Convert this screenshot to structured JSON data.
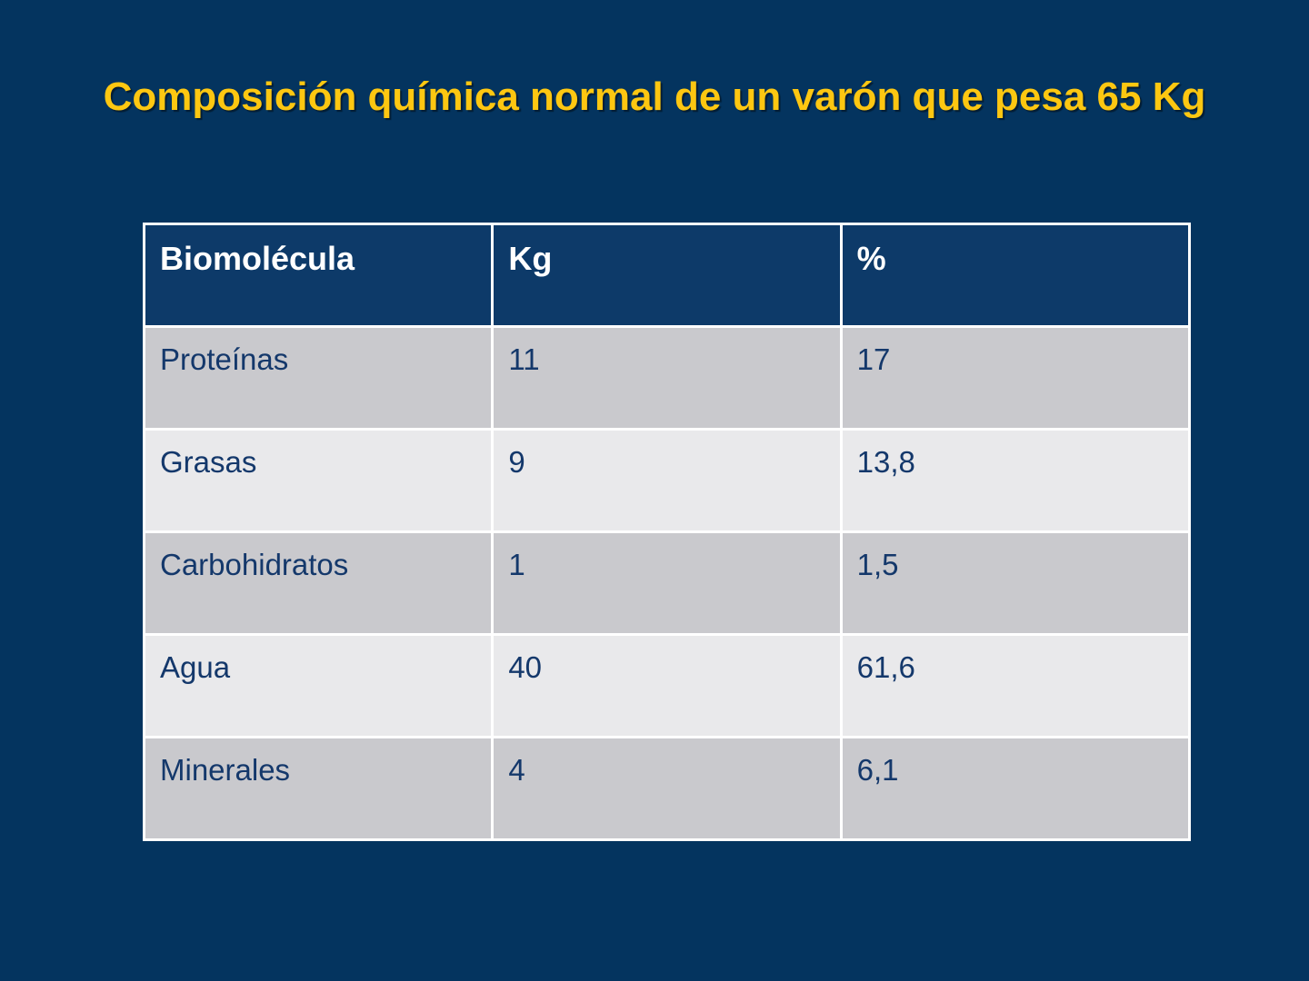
{
  "title": "Composición química normal de un varón que pesa 65 Kg",
  "table": {
    "headers": [
      "Biomolécula",
      "Kg",
      "%"
    ],
    "rows": [
      [
        "Proteínas",
        "11",
        "17"
      ],
      [
        "Grasas",
        "9",
        "13,8"
      ],
      [
        "Carbohidratos",
        "1",
        "1,5"
      ],
      [
        "Agua",
        "40",
        "61,6"
      ],
      [
        "Minerales",
        "4",
        "6,1"
      ]
    ]
  },
  "colors": {
    "background": "#04345f",
    "title_text": "#fdc711",
    "header_bg": "#0d3a69",
    "header_text": "#ffffff",
    "row_dark_bg": "#c9c9cd",
    "row_light_bg": "#e9e9eb",
    "cell_text": "#14386b",
    "table_border": "#ffffff"
  },
  "chart_data": {
    "type": "table",
    "title": "Composición química normal de un varón que pesa 65 Kg",
    "columns": [
      "Biomolécula",
      "Kg",
      "%"
    ],
    "rows": [
      {
        "biomolecula": "Proteínas",
        "kg": 11,
        "percent": 17
      },
      {
        "biomolecula": "Grasas",
        "kg": 9,
        "percent": 13.8
      },
      {
        "biomolecula": "Carbohidratos",
        "kg": 1,
        "percent": 1.5
      },
      {
        "biomolecula": "Agua",
        "kg": 40,
        "percent": 61.6
      },
      {
        "biomolecula": "Minerales",
        "kg": 4,
        "percent": 6.1
      }
    ]
  }
}
